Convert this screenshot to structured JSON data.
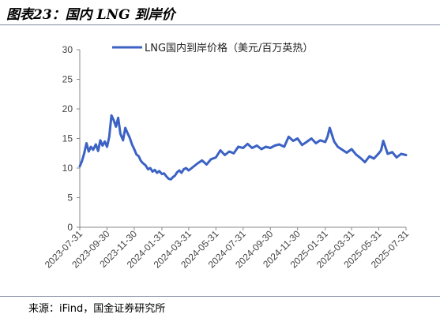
{
  "figure": {
    "title": "图表23：国内 LNG 到岸价",
    "source": "来源：iFind，国金证券研究所"
  },
  "colors": {
    "series": "#3B62C4",
    "axis": "#888888"
  },
  "chart_data": {
    "type": "line",
    "title": "",
    "xlabel": "",
    "ylabel": "",
    "ylim": [
      0,
      30
    ],
    "yticks": [
      0,
      5,
      10,
      15,
      20,
      25,
      30
    ],
    "xlim": [
      "2023-07-31",
      "2025-07-31"
    ],
    "x_tick_labels": [
      "2023-07-31",
      "2023-09-30",
      "2023-11-30",
      "2024-01-31",
      "2024-03-31",
      "2024-05-31",
      "2024-07-31",
      "2024-09-30",
      "2024-11-30",
      "2025-01-31",
      "2025-03-31",
      "2025-05-31",
      "2025-07-31"
    ],
    "grid": false,
    "legend": "top",
    "series": [
      {
        "name": "LNG国内到岸价格（美元/百万英热）",
        "x": [
          "2023-07-31",
          "2023-08-05",
          "2023-08-10",
          "2023-08-15",
          "2023-08-20",
          "2023-08-25",
          "2023-08-30",
          "2023-09-05",
          "2023-09-10",
          "2023-09-15",
          "2023-09-20",
          "2023-09-25",
          "2023-09-30",
          "2023-10-05",
          "2023-10-10",
          "2023-10-15",
          "2023-10-20",
          "2023-10-25",
          "2023-10-30",
          "2023-11-05",
          "2023-11-10",
          "2023-11-15",
          "2023-11-20",
          "2023-11-25",
          "2023-11-30",
          "2023-12-05",
          "2023-12-10",
          "2023-12-15",
          "2023-12-20",
          "2023-12-25",
          "2023-12-31",
          "2024-01-05",
          "2024-01-10",
          "2024-01-15",
          "2024-01-20",
          "2024-01-25",
          "2024-01-31",
          "2024-02-05",
          "2024-02-10",
          "2024-02-15",
          "2024-02-20",
          "2024-02-25",
          "2024-02-29",
          "2024-03-05",
          "2024-03-10",
          "2024-03-15",
          "2024-03-20",
          "2024-03-25",
          "2024-03-31",
          "2024-04-10",
          "2024-04-20",
          "2024-04-30",
          "2024-05-10",
          "2024-05-20",
          "2024-05-31",
          "2024-06-10",
          "2024-06-20",
          "2024-06-30",
          "2024-07-10",
          "2024-07-20",
          "2024-07-31",
          "2024-08-10",
          "2024-08-20",
          "2024-08-31",
          "2024-09-10",
          "2024-09-20",
          "2024-09-30",
          "2024-10-10",
          "2024-10-20",
          "2024-10-31",
          "2024-11-10",
          "2024-11-20",
          "2024-11-30",
          "2024-12-10",
          "2024-12-20",
          "2024-12-31",
          "2025-01-10",
          "2025-01-20",
          "2025-01-31",
          "2025-02-05",
          "2025-02-10",
          "2025-02-20",
          "2025-02-28",
          "2025-03-10",
          "2025-03-20",
          "2025-03-31",
          "2025-04-10",
          "2025-04-20",
          "2025-04-30",
          "2025-05-10",
          "2025-05-20",
          "2025-05-31",
          "2025-06-05",
          "2025-06-10",
          "2025-06-20",
          "2025-06-30",
          "2025-07-10",
          "2025-07-20",
          "2025-07-31"
        ],
        "values": [
          10.3,
          11.2,
          12.5,
          14.2,
          12.8,
          13.6,
          13.1,
          14.0,
          12.9,
          14.7,
          13.8,
          14.5,
          13.6,
          15.3,
          18.9,
          18.1,
          17.0,
          18.5,
          15.8,
          14.7,
          16.8,
          15.9,
          15.1,
          14.0,
          13.2,
          12.3,
          12.0,
          11.2,
          10.8,
          10.5,
          9.8,
          10.0,
          9.4,
          9.7,
          9.2,
          9.5,
          9.0,
          9.1,
          8.6,
          8.2,
          8.1,
          8.5,
          8.7,
          9.3,
          9.6,
          9.2,
          9.8,
          10.0,
          9.6,
          10.2,
          10.8,
          11.3,
          10.6,
          11.5,
          11.8,
          13.0,
          12.2,
          12.8,
          12.5,
          13.6,
          13.4,
          14.1,
          13.4,
          13.8,
          13.2,
          13.6,
          13.4,
          13.8,
          14.0,
          13.6,
          15.3,
          14.6,
          15.0,
          13.9,
          14.4,
          15.0,
          14.2,
          14.7,
          14.4,
          15.3,
          16.8,
          14.5,
          13.6,
          13.1,
          12.6,
          13.2,
          12.3,
          11.7,
          11.0,
          12.0,
          11.6,
          12.5,
          13.0,
          14.6,
          12.4,
          12.7,
          11.8,
          12.4,
          12.2
        ]
      }
    ]
  }
}
